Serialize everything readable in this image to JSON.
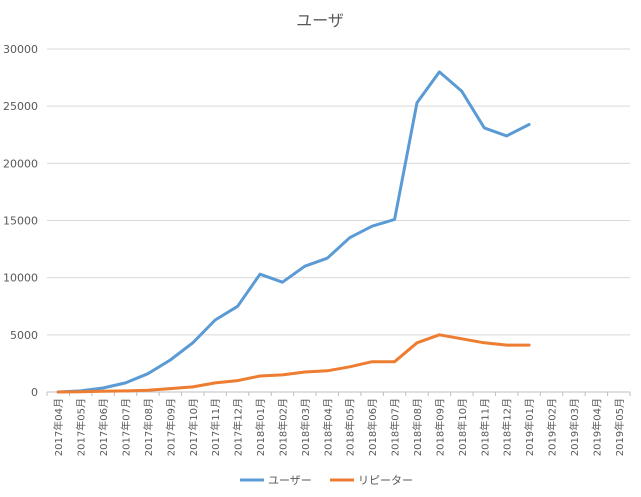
{
  "chart_data": {
    "type": "line",
    "title": "ユーザ",
    "xlabel": "",
    "ylabel": "",
    "ylim": [
      0,
      30000
    ],
    "yticks": [
      0,
      5000,
      10000,
      15000,
      20000,
      25000,
      30000
    ],
    "grid": true,
    "legend_position": "bottom",
    "categories": [
      "2017年04月",
      "2017年05月",
      "2017年06月",
      "2017年07月",
      "2017年08月",
      "2017年09月",
      "2017年10月",
      "2017年11月",
      "2017年12月",
      "2018年01月",
      "2018年02月",
      "2018年03月",
      "2018年04月",
      "2018年05月",
      "2018年06月",
      "2018年07月",
      "2018年08月",
      "2018年09月",
      "2018年10月",
      "2018年11月",
      "2018年12月",
      "2019年01月",
      "2019年02月",
      "2019年03月",
      "2019年04月",
      "2019年05月"
    ],
    "series": [
      {
        "name": "ユーザー",
        "color": "#5b9bd5",
        "values": [
          0,
          100,
          350,
          800,
          1600,
          2800,
          4300,
          6300,
          7500,
          10300,
          9600,
          11000,
          11700,
          13500,
          14500,
          15100,
          25300,
          28000,
          26300,
          23100,
          22400,
          23400,
          null,
          null,
          null,
          null
        ]
      },
      {
        "name": "リピーター",
        "color": "#ed7d31",
        "values": [
          0,
          30,
          60,
          100,
          150,
          300,
          450,
          800,
          1000,
          1400,
          1500,
          1750,
          1850,
          2200,
          2650,
          2650,
          4300,
          5000,
          4650,
          4300,
          4100,
          4100,
          null,
          null,
          null,
          null
        ]
      }
    ]
  }
}
